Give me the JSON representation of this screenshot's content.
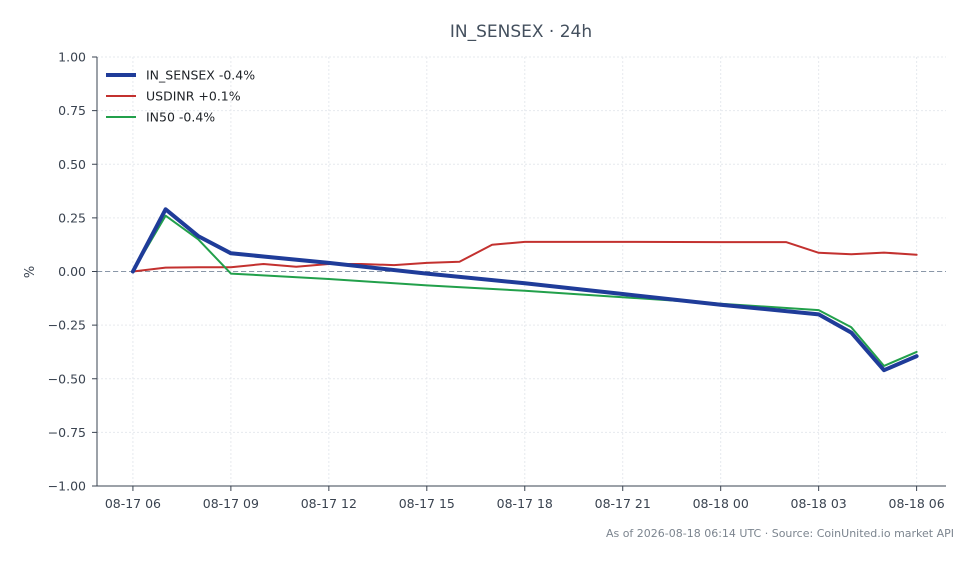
{
  "chart_data": {
    "type": "line",
    "title": "IN_SENSEX · 24h",
    "ylabel": "%",
    "xlabel": "",
    "ylim": [
      -1.0,
      1.0
    ],
    "xlim_hours": [
      -1.1,
      24.9
    ],
    "y_ticks": [
      {
        "v": 1.0,
        "label": "1.00"
      },
      {
        "v": 0.75,
        "label": "0.75"
      },
      {
        "v": 0.5,
        "label": "0.50"
      },
      {
        "v": 0.25,
        "label": "0.25"
      },
      {
        "v": 0.0,
        "label": "0.00"
      },
      {
        "v": -0.25,
        "label": "−0.25"
      },
      {
        "v": -0.5,
        "label": "−0.50"
      },
      {
        "v": -0.75,
        "label": "−0.75"
      },
      {
        "v": -1.0,
        "label": "−1.00"
      }
    ],
    "x_ticks": [
      {
        "h": 0,
        "label": "08-17 06"
      },
      {
        "h": 3,
        "label": "08-17 09"
      },
      {
        "h": 6,
        "label": "08-17 12"
      },
      {
        "h": 9,
        "label": "08-17 15"
      },
      {
        "h": 12,
        "label": "08-17 18"
      },
      {
        "h": 15,
        "label": "08-17 21"
      },
      {
        "h": 18,
        "label": "08-18 00"
      },
      {
        "h": 21,
        "label": "08-18 03"
      },
      {
        "h": 24,
        "label": "08-18 06"
      }
    ],
    "grid": true,
    "zero_line": true,
    "legend_position": "top-left",
    "series": [
      {
        "name": "IN_SENSEX -0.4%",
        "color": "#1f3c99",
        "width": 4,
        "points": [
          [
            0,
            0.0
          ],
          [
            1,
            0.29
          ],
          [
            2,
            0.165
          ],
          [
            3,
            0.085
          ],
          [
            6,
            0.04
          ],
          [
            9,
            -0.01
          ],
          [
            12,
            -0.055
          ],
          [
            15,
            -0.105
          ],
          [
            18,
            -0.155
          ],
          [
            21,
            -0.2
          ],
          [
            22,
            -0.285
          ],
          [
            23,
            -0.46
          ],
          [
            24,
            -0.395
          ]
        ]
      },
      {
        "name": "USDINR +0.1%",
        "color": "#c3312f",
        "width": 2,
        "points": [
          [
            0,
            0.0
          ],
          [
            1,
            0.018
          ],
          [
            2,
            0.02
          ],
          [
            3,
            0.02
          ],
          [
            4,
            0.035
          ],
          [
            5,
            0.022
          ],
          [
            6,
            0.035
          ],
          [
            7,
            0.035
          ],
          [
            8,
            0.03
          ],
          [
            9,
            0.04
          ],
          [
            10,
            0.045
          ],
          [
            11,
            0.125
          ],
          [
            12,
            0.138
          ],
          [
            15,
            0.138
          ],
          [
            18,
            0.137
          ],
          [
            20,
            0.137
          ],
          [
            21,
            0.087
          ],
          [
            22,
            0.08
          ],
          [
            23,
            0.088
          ],
          [
            24,
            0.078
          ]
        ]
      },
      {
        "name": "IN50 -0.4%",
        "color": "#22a04b",
        "width": 2,
        "points": [
          [
            0,
            0.0
          ],
          [
            1,
            0.26
          ],
          [
            2,
            0.15
          ],
          [
            3,
            -0.01
          ],
          [
            6,
            -0.035
          ],
          [
            9,
            -0.065
          ],
          [
            12,
            -0.09
          ],
          [
            15,
            -0.12
          ],
          [
            18,
            -0.15
          ],
          [
            21,
            -0.18
          ],
          [
            22,
            -0.26
          ],
          [
            23,
            -0.44
          ],
          [
            24,
            -0.375
          ]
        ]
      }
    ]
  },
  "footer": "As of 2026-08-18 06:14 UTC · Source: CoinUnited.io market API"
}
